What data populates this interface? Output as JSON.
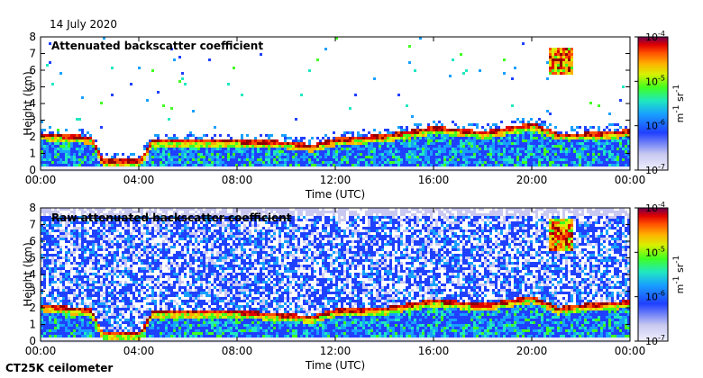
{
  "date": "14 July 2020",
  "instrument": "CT25K ceilometer",
  "colorbar": {
    "unit_html": "m<sup>-1</sup> sr<sup>-1</sup>",
    "tick_base": "10",
    "ticks": [
      {
        "exp": "-4",
        "value": 0.0001
      },
      {
        "exp": "-5",
        "value": 1e-05
      },
      {
        "exp": "-6",
        "value": 1e-06
      },
      {
        "exp": "-7",
        "value": 1e-07
      }
    ],
    "scale": "log",
    "colors": [
      "#e8e8f8",
      "#c8c8f0",
      "#2040ff",
      "#18a0ff",
      "#20e8c0",
      "#40ff20",
      "#d8f000",
      "#ffb000",
      "#ff5000",
      "#e00000",
      "#900000"
    ]
  },
  "chart_data": [
    {
      "type": "heatmap",
      "title": "Attenuated backscatter coefficient",
      "xlabel": "Time (UTC)",
      "ylabel": "Height (km)",
      "x_ticks": [
        "00:00",
        "04:00",
        "08:00",
        "12:00",
        "16:00",
        "20:00",
        "00:00"
      ],
      "y_ticks": [
        "0",
        "1",
        "2",
        "3",
        "4",
        "5",
        "6",
        "7",
        "8"
      ],
      "xlim": [
        0,
        24
      ],
      "ylim": [
        0,
        8
      ],
      "color_scale": "log",
      "clim": [
        1e-07,
        0.0001
      ],
      "boundary_layer_top_km": [
        [
          0,
          2.2
        ],
        [
          2,
          2.0
        ],
        [
          2.5,
          0.6
        ],
        [
          4,
          0.6
        ],
        [
          4.5,
          1.8
        ],
        [
          8,
          1.8
        ],
        [
          10,
          1.7
        ],
        [
          11,
          1.5
        ],
        [
          12,
          1.9
        ],
        [
          14,
          2.1
        ],
        [
          16,
          2.6
        ],
        [
          18,
          2.3
        ],
        [
          20,
          2.8
        ],
        [
          21,
          2.2
        ],
        [
          22,
          2.2
        ],
        [
          24,
          2.4
        ]
      ],
      "elevated_layer": {
        "time_range": [
          20.6,
          21.6
        ],
        "height_range_km": [
          5.8,
          7.4
        ]
      }
    },
    {
      "type": "heatmap",
      "title": "Raw attenuated backscatter coefficient",
      "xlabel": "Time (UTC)",
      "ylabel": "Height (km)",
      "x_ticks": [
        "00:00",
        "04:00",
        "08:00",
        "12:00",
        "16:00",
        "20:00",
        "00:00"
      ],
      "y_ticks": [
        "0",
        "1",
        "2",
        "3",
        "4",
        "5",
        "6",
        "7",
        "8"
      ],
      "xlim": [
        0,
        24
      ],
      "ylim": [
        0,
        8
      ],
      "color_scale": "log",
      "clim": [
        1e-07,
        0.0001
      ],
      "boundary_layer_top_km": [
        [
          0,
          2.2
        ],
        [
          2,
          1.9
        ],
        [
          2.5,
          0.5
        ],
        [
          4,
          0.5
        ],
        [
          4.5,
          1.8
        ],
        [
          8,
          1.8
        ],
        [
          10,
          1.6
        ],
        [
          11,
          1.5
        ],
        [
          12,
          1.9
        ],
        [
          14,
          2.0
        ],
        [
          16,
          2.5
        ],
        [
          18,
          2.2
        ],
        [
          20,
          2.7
        ],
        [
          21,
          2.0
        ],
        [
          22,
          2.2
        ],
        [
          24,
          2.4
        ]
      ],
      "elevated_layer": {
        "time_range": [
          20.6,
          21.6
        ],
        "height_range_km": [
          5.5,
          7.5
        ]
      }
    }
  ]
}
